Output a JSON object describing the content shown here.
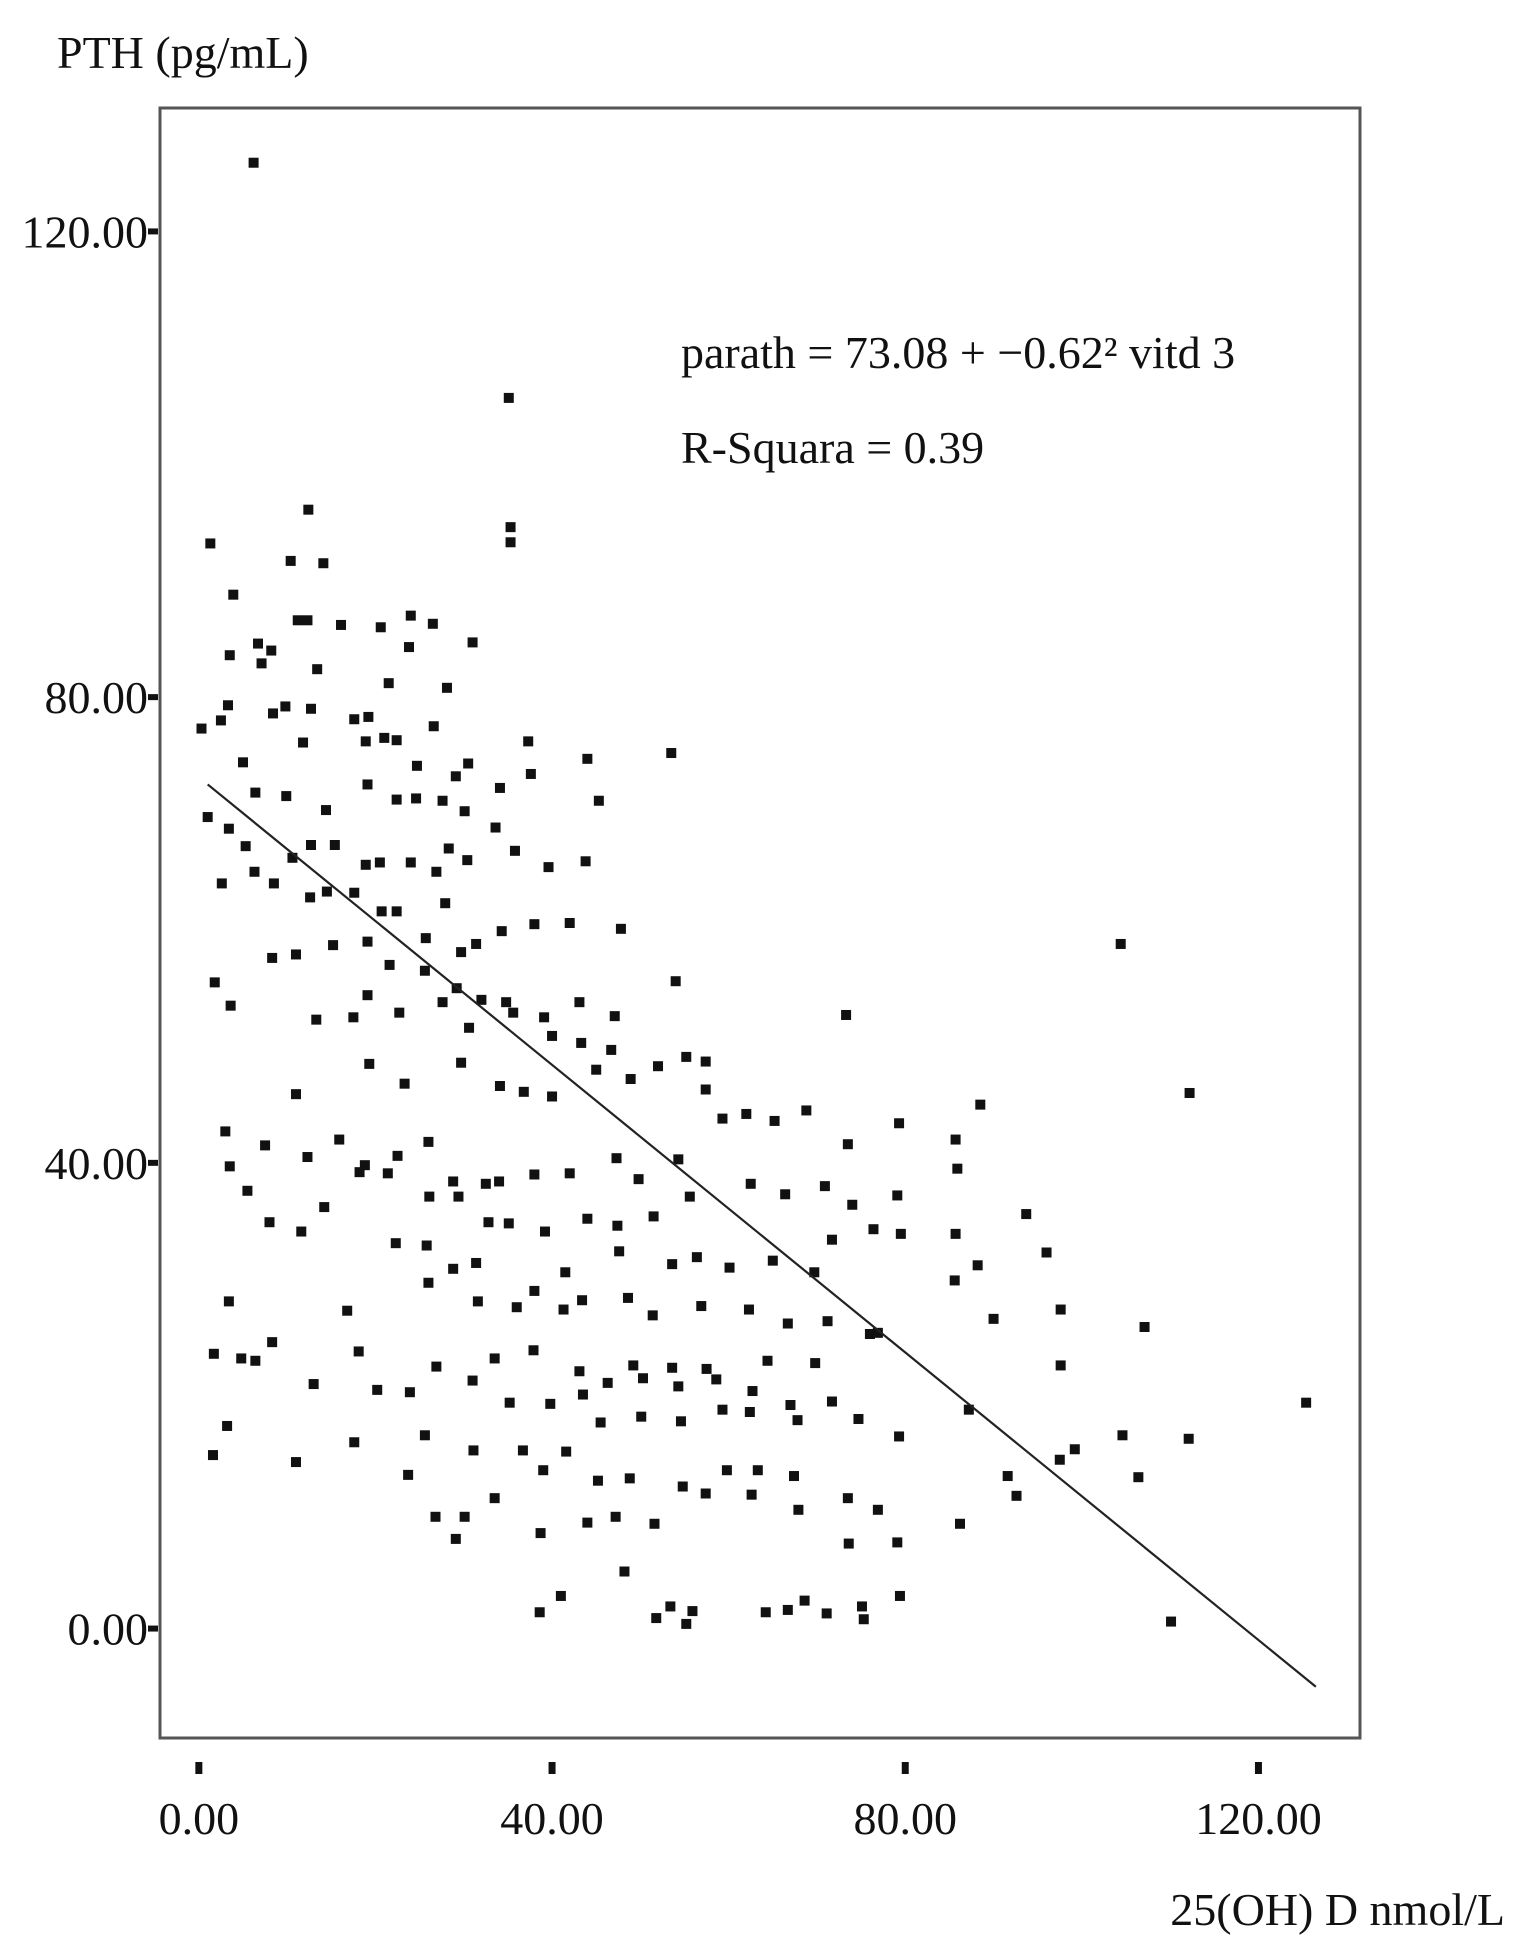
{
  "chart_data": {
    "type": "scatter",
    "ylabel": "PTH (pg/mL)",
    "xlabel": "25(OH) D nmol/L",
    "xlim": [
      -4.4,
      131.5
    ],
    "ylim": [
      -9.4,
      130.6
    ],
    "x_ticks": [
      "0.00",
      "40.00",
      "80.00",
      "120.00"
    ],
    "x_tick_values": [
      0,
      40,
      80,
      120
    ],
    "y_ticks": [
      "0.00",
      "40.00",
      "80.00",
      "120.00"
    ],
    "y_tick_values": [
      0,
      40,
      80,
      120
    ],
    "grid": false,
    "legend": "none",
    "annotations": {
      "equation": "parath = 73.08 + −0.62² vitd 3",
      "r_squared": "R-Squara = 0.39"
    },
    "fit_line": {
      "x": [
        1,
        126.5
      ],
      "y": [
        72.5,
        -5.0
      ]
    },
    "series": [
      {
        "points": [
          [
            6.2,
            125.9
          ],
          [
            35.1,
            105.7
          ],
          [
            35.3,
            94.6
          ],
          [
            35.3,
            93.3
          ],
          [
            12.4,
            96.1
          ],
          [
            1.3,
            93.2
          ],
          [
            10.4,
            91.7
          ],
          [
            14.1,
            91.5
          ],
          [
            3.9,
            88.8
          ],
          [
            12.3,
            86.6
          ],
          [
            11.2,
            86.6
          ],
          [
            24.0,
            87.0
          ],
          [
            6.7,
            84.6
          ],
          [
            8.2,
            84.0
          ],
          [
            16.1,
            86.2
          ],
          [
            20.6,
            86.0
          ],
          [
            23.8,
            84.3
          ],
          [
            26.5,
            86.3
          ],
          [
            31.0,
            84.7
          ],
          [
            3.5,
            83.6
          ],
          [
            7.1,
            82.9
          ],
          [
            13.4,
            82.4
          ],
          [
            21.5,
            81.2
          ],
          [
            28.1,
            80.8
          ],
          [
            3.3,
            79.3
          ],
          [
            8.4,
            78.6
          ],
          [
            9.8,
            79.2
          ],
          [
            12.7,
            79.0
          ],
          [
            17.6,
            78.1
          ],
          [
            19.2,
            78.3
          ],
          [
            21.0,
            76.5
          ],
          [
            26.6,
            77.5
          ],
          [
            0.3,
            77.3
          ],
          [
            2.5,
            78.0
          ],
          [
            5.0,
            74.4
          ],
          [
            11.8,
            76.1
          ],
          [
            18.9,
            76.2
          ],
          [
            22.4,
            76.3
          ],
          [
            24.7,
            74.1
          ],
          [
            29.1,
            73.2
          ],
          [
            30.5,
            74.3
          ],
          [
            34.1,
            72.2
          ],
          [
            37.3,
            76.2
          ],
          [
            37.6,
            73.4
          ],
          [
            44.0,
            74.7
          ],
          [
            53.5,
            75.2
          ],
          [
            6.4,
            71.8
          ],
          [
            9.9,
            71.5
          ],
          [
            14.4,
            70.3
          ],
          [
            19.1,
            72.5
          ],
          [
            22.4,
            71.2
          ],
          [
            24.6,
            71.3
          ],
          [
            27.6,
            71.1
          ],
          [
            30.1,
            70.2
          ],
          [
            33.6,
            68.8
          ],
          [
            1.0,
            69.7
          ],
          [
            3.4,
            68.7
          ],
          [
            5.3,
            67.2
          ],
          [
            10.6,
            66.2
          ],
          [
            12.7,
            67.3
          ],
          [
            15.4,
            67.3
          ],
          [
            18.9,
            65.6
          ],
          [
            20.5,
            65.8
          ],
          [
            24.0,
            65.8
          ],
          [
            26.9,
            65.0
          ],
          [
            28.3,
            67.0
          ],
          [
            30.4,
            66.0
          ],
          [
            35.8,
            66.8
          ],
          [
            39.6,
            65.4
          ],
          [
            43.8,
            65.9
          ],
          [
            45.3,
            71.1
          ],
          [
            2.6,
            64.0
          ],
          [
            6.3,
            65.0
          ],
          [
            8.5,
            64.0
          ],
          [
            12.6,
            62.8
          ],
          [
            14.5,
            63.3
          ],
          [
            17.6,
            63.2
          ],
          [
            20.7,
            61.6
          ],
          [
            22.4,
            61.6
          ],
          [
            25.7,
            59.3
          ],
          [
            27.9,
            62.3
          ],
          [
            29.7,
            58.1
          ],
          [
            31.4,
            58.8
          ],
          [
            34.3,
            59.9
          ],
          [
            38.0,
            60.5
          ],
          [
            42.0,
            60.6
          ],
          [
            47.8,
            60.1
          ],
          [
            8.3,
            57.6
          ],
          [
            11.0,
            57.9
          ],
          [
            15.2,
            58.7
          ],
          [
            19.1,
            59.0
          ],
          [
            21.6,
            57.0
          ],
          [
            25.6,
            56.5
          ],
          [
            29.2,
            55.0
          ],
          [
            32.0,
            54.0
          ],
          [
            34.8,
            53.8
          ],
          [
            39.1,
            52.5
          ],
          [
            43.1,
            53.8
          ],
          [
            47.1,
            52.6
          ],
          [
            54.0,
            55.6
          ],
          [
            73.3,
            52.7
          ],
          [
            1.8,
            55.5
          ],
          [
            3.6,
            53.5
          ],
          [
            13.3,
            52.3
          ],
          [
            17.5,
            52.5
          ],
          [
            19.1,
            54.4
          ],
          [
            22.7,
            52.9
          ],
          [
            27.6,
            53.8
          ],
          [
            30.6,
            51.6
          ],
          [
            35.6,
            52.9
          ],
          [
            40.0,
            50.9
          ],
          [
            43.3,
            50.3
          ],
          [
            46.7,
            49.7
          ],
          [
            52.0,
            48.3
          ],
          [
            55.2,
            49.1
          ],
          [
            57.4,
            48.7
          ],
          [
            11.0,
            45.9
          ],
          [
            19.3,
            48.5
          ],
          [
            23.3,
            46.8
          ],
          [
            29.7,
            48.6
          ],
          [
            34.1,
            46.6
          ],
          [
            36.8,
            46.1
          ],
          [
            40.0,
            45.7
          ],
          [
            45.0,
            48.0
          ],
          [
            48.9,
            47.2
          ],
          [
            57.4,
            46.3
          ],
          [
            104.4,
            58.8
          ],
          [
            3.0,
            42.7
          ],
          [
            7.5,
            41.5
          ],
          [
            12.3,
            40.5
          ],
          [
            15.9,
            42.0
          ],
          [
            18.8,
            39.8
          ],
          [
            22.5,
            40.6
          ],
          [
            26.0,
            41.8
          ],
          [
            28.8,
            38.4
          ],
          [
            32.5,
            38.2
          ],
          [
            34.0,
            38.4
          ],
          [
            38.0,
            39.0
          ],
          [
            42.0,
            39.1
          ],
          [
            47.3,
            40.4
          ],
          [
            49.8,
            38.6
          ],
          [
            54.3,
            40.3
          ],
          [
            59.3,
            43.8
          ],
          [
            62.0,
            44.2
          ],
          [
            65.2,
            43.6
          ],
          [
            68.8,
            44.5
          ],
          [
            73.5,
            41.6
          ],
          [
            79.3,
            43.4
          ],
          [
            85.7,
            42.0
          ],
          [
            88.5,
            45.0
          ],
          [
            112.2,
            46.0
          ],
          [
            3.5,
            39.7
          ],
          [
            5.5,
            37.6
          ],
          [
            14.2,
            36.2
          ],
          [
            18.2,
            39.2
          ],
          [
            21.4,
            39.1
          ],
          [
            26.1,
            37.1
          ],
          [
            29.4,
            37.1
          ],
          [
            32.8,
            34.9
          ],
          [
            35.1,
            34.8
          ],
          [
            39.2,
            34.1
          ],
          [
            44.0,
            35.2
          ],
          [
            47.4,
            34.6
          ],
          [
            51.5,
            35.4
          ],
          [
            55.6,
            37.1
          ],
          [
            62.5,
            38.2
          ],
          [
            66.4,
            37.3
          ],
          [
            70.9,
            38.0
          ],
          [
            74.0,
            36.4
          ],
          [
            79.1,
            37.2
          ],
          [
            85.9,
            39.5
          ],
          [
            8.0,
            34.9
          ],
          [
            11.6,
            34.1
          ],
          [
            22.3,
            33.1
          ],
          [
            25.8,
            32.9
          ],
          [
            28.8,
            30.9
          ],
          [
            31.4,
            31.4
          ],
          [
            38.0,
            29.0
          ],
          [
            41.5,
            30.6
          ],
          [
            47.6,
            32.4
          ],
          [
            53.6,
            31.3
          ],
          [
            56.4,
            31.9
          ],
          [
            60.1,
            31.0
          ],
          [
            65.0,
            31.6
          ],
          [
            69.7,
            30.6
          ],
          [
            71.7,
            33.4
          ],
          [
            76.4,
            34.3
          ],
          [
            79.5,
            33.9
          ],
          [
            85.7,
            33.9
          ],
          [
            93.7,
            35.6
          ],
          [
            96.0,
            32.3
          ],
          [
            3.4,
            28.1
          ],
          [
            16.8,
            27.3
          ],
          [
            26.0,
            29.7
          ],
          [
            31.6,
            28.1
          ],
          [
            36.0,
            27.6
          ],
          [
            41.3,
            27.4
          ],
          [
            43.4,
            28.2
          ],
          [
            48.6,
            28.4
          ],
          [
            51.4,
            26.9
          ],
          [
            56.9,
            27.7
          ],
          [
            62.3,
            27.4
          ],
          [
            66.7,
            26.2
          ],
          [
            71.2,
            26.4
          ],
          [
            76.0,
            25.3
          ],
          [
            85.6,
            29.9
          ],
          [
            97.6,
            27.4
          ],
          [
            107.1,
            25.9
          ],
          [
            1.7,
            23.6
          ],
          [
            6.4,
            23.0
          ],
          [
            13.0,
            21.0
          ],
          [
            20.2,
            20.5
          ],
          [
            23.9,
            20.3
          ],
          [
            31.0,
            21.3
          ],
          [
            35.2,
            19.4
          ],
          [
            39.8,
            19.3
          ],
          [
            43.5,
            20.1
          ],
          [
            46.3,
            21.1
          ],
          [
            50.3,
            21.5
          ],
          [
            54.3,
            20.8
          ],
          [
            58.6,
            21.4
          ],
          [
            62.7,
            20.4
          ],
          [
            67.0,
            19.2
          ],
          [
            71.7,
            19.5
          ],
          [
            97.6,
            22.6
          ],
          [
            4.8,
            23.2
          ],
          [
            8.3,
            24.6
          ],
          [
            18.1,
            23.8
          ],
          [
            26.9,
            22.5
          ],
          [
            33.5,
            23.2
          ],
          [
            37.9,
            23.9
          ],
          [
            43.1,
            22.1
          ],
          [
            49.2,
            22.6
          ],
          [
            53.6,
            22.4
          ],
          [
            57.5,
            22.3
          ],
          [
            64.4,
            23.0
          ],
          [
            69.8,
            22.8
          ],
          [
            76.9,
            25.4
          ],
          [
            3.2,
            17.4
          ],
          [
            11.0,
            14.3
          ],
          [
            23.7,
            13.2
          ],
          [
            31.1,
            15.3
          ],
          [
            36.7,
            15.3
          ],
          [
            41.6,
            15.2
          ],
          [
            45.5,
            17.7
          ],
          [
            50.1,
            18.2
          ],
          [
            54.6,
            17.8
          ],
          [
            59.3,
            18.8
          ],
          [
            62.4,
            18.6
          ],
          [
            67.8,
            17.9
          ],
          [
            74.7,
            18.0
          ],
          [
            79.3,
            16.5
          ],
          [
            87.2,
            18.8
          ],
          [
            104.6,
            16.6
          ],
          [
            112.1,
            16.3
          ],
          [
            1.6,
            14.9
          ],
          [
            17.6,
            16.0
          ],
          [
            25.6,
            16.6
          ],
          [
            33.5,
            11.2
          ],
          [
            39.0,
            13.6
          ],
          [
            45.2,
            12.7
          ],
          [
            48.8,
            12.9
          ],
          [
            54.8,
            12.2
          ],
          [
            59.8,
            13.6
          ],
          [
            63.3,
            13.6
          ],
          [
            67.4,
            13.1
          ],
          [
            73.5,
            11.2
          ],
          [
            76.9,
            10.2
          ],
          [
            92.6,
            11.4
          ],
          [
            99.2,
            15.4
          ],
          [
            106.4,
            13.0
          ],
          [
            125.4,
            19.4
          ],
          [
            26.8,
            9.6
          ],
          [
            29.1,
            7.7
          ],
          [
            30.1,
            9.6
          ],
          [
            38.7,
            8.2
          ],
          [
            44.0,
            9.1
          ],
          [
            47.2,
            9.6
          ],
          [
            51.6,
            9.0
          ],
          [
            57.4,
            11.6
          ],
          [
            62.6,
            11.5
          ],
          [
            67.9,
            10.2
          ],
          [
            73.6,
            7.3
          ],
          [
            79.1,
            7.4
          ],
          [
            86.2,
            9.0
          ],
          [
            91.6,
            13.1
          ],
          [
            97.5,
            14.5
          ],
          [
            38.6,
            1.4
          ],
          [
            41.0,
            2.8
          ],
          [
            48.2,
            4.9
          ],
          [
            53.4,
            1.9
          ],
          [
            55.9,
            1.5
          ],
          [
            64.2,
            1.4
          ],
          [
            68.6,
            2.4
          ],
          [
            75.1,
            1.9
          ],
          [
            79.4,
            2.8
          ],
          [
            110.1,
            0.6
          ],
          [
            51.8,
            0.9
          ],
          [
            55.2,
            0.4
          ],
          [
            66.7,
            1.6
          ],
          [
            71.1,
            1.3
          ],
          [
            75.3,
            0.8
          ],
          [
            90.0,
            26.6
          ],
          [
            88.2,
            31.2
          ]
        ]
      }
    ]
  }
}
